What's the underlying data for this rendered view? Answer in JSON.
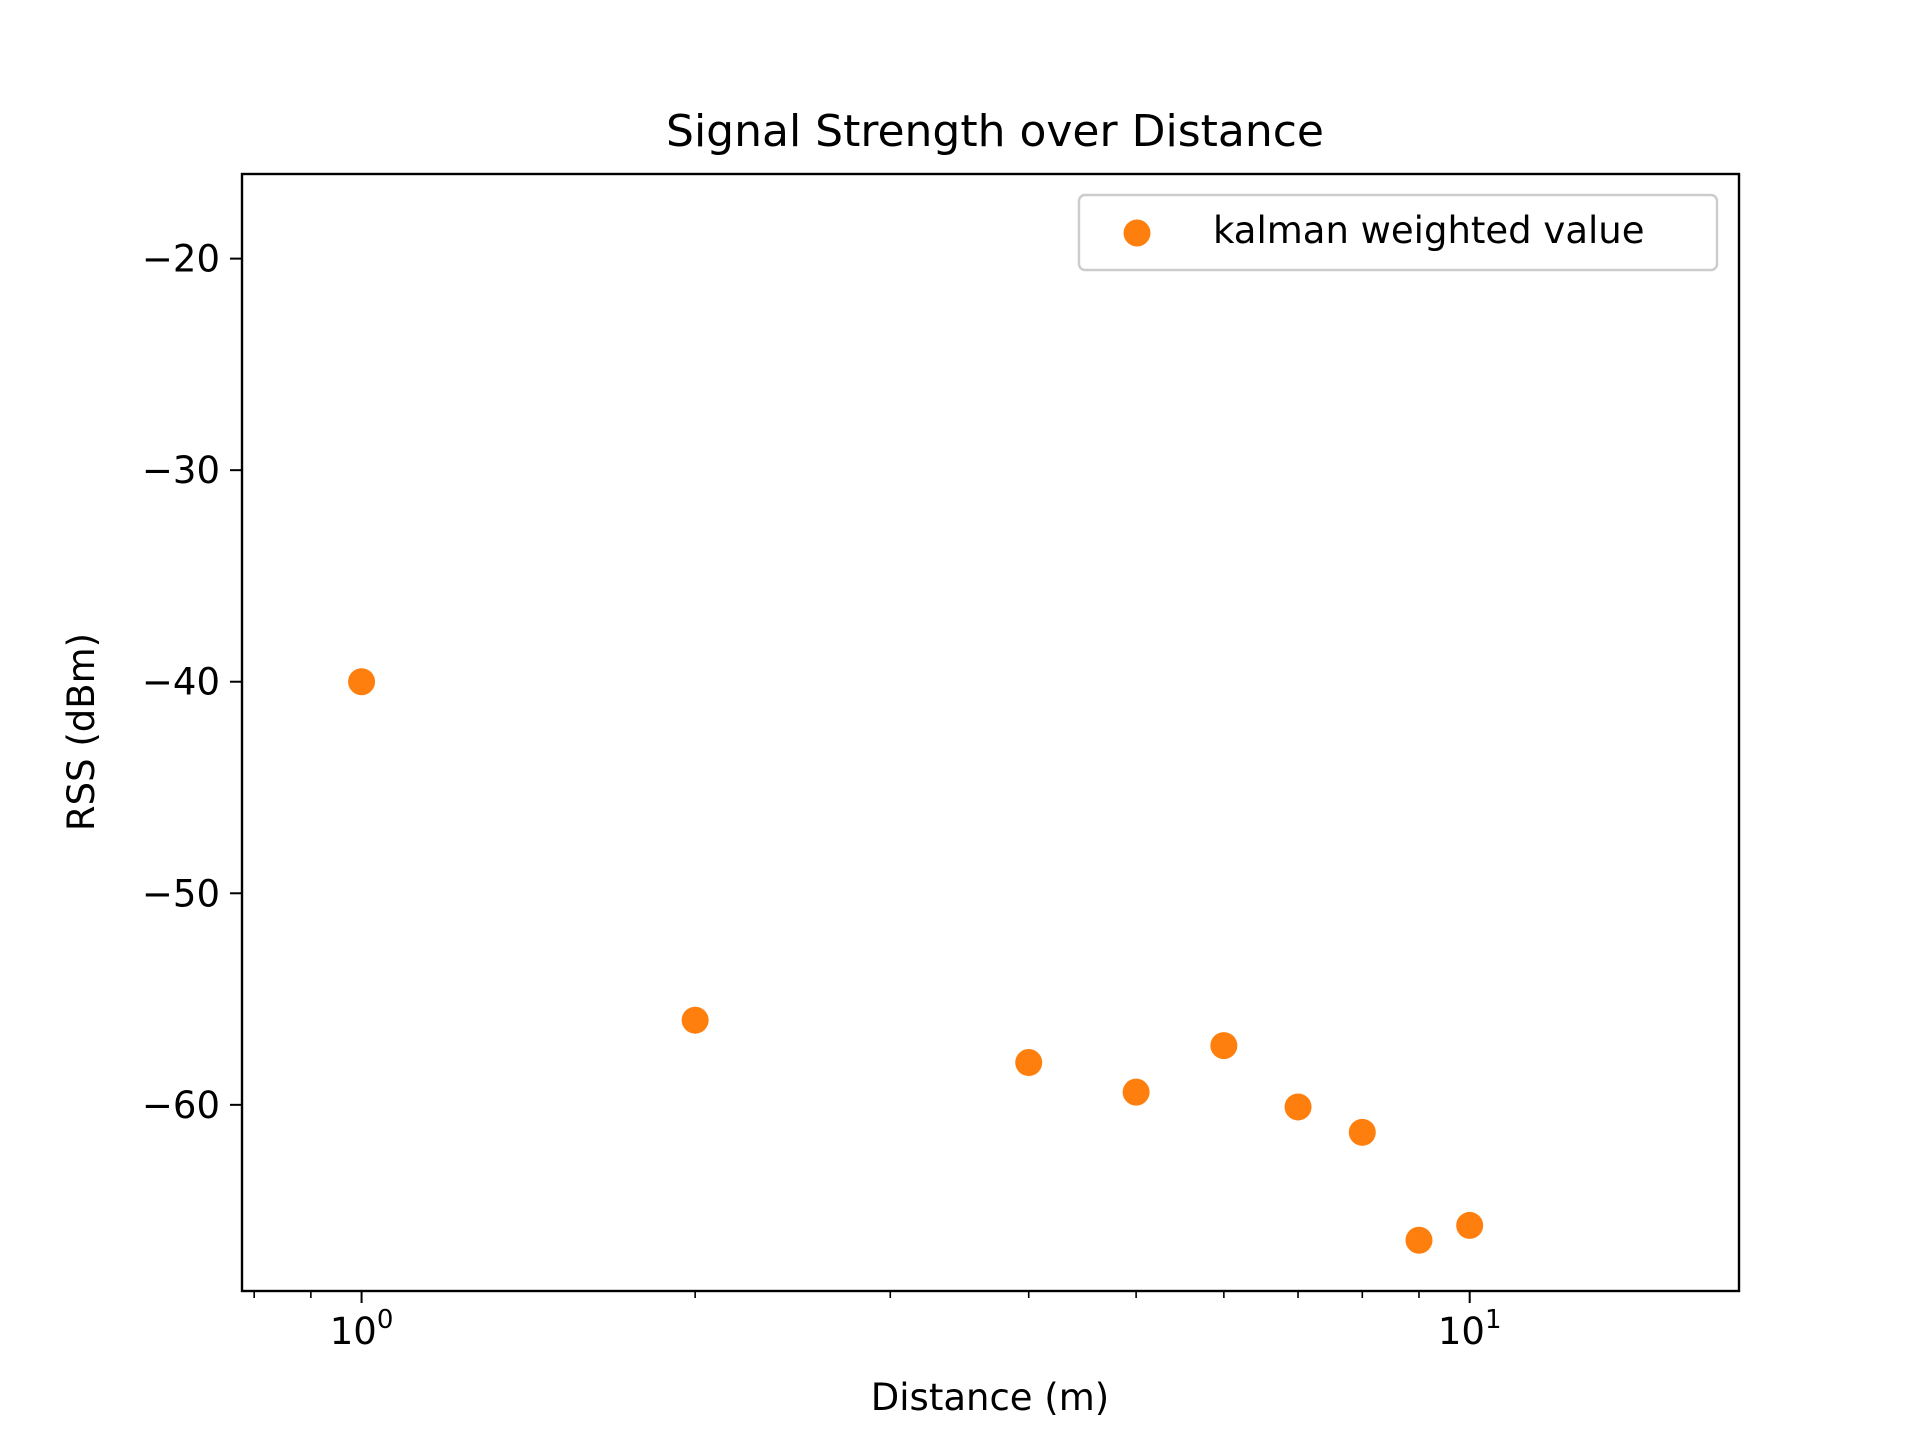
{
  "chart_data": {
    "type": "scatter",
    "title": "Signal Strength over Distance",
    "xlabel": "Distance (m)",
    "ylabel": "RSS (dBm)",
    "x_scale": "log",
    "xlim": [
      0.78,
      17.5
    ],
    "ylim": [
      -68.8,
      -16.0
    ],
    "x_ticks": [
      {
        "base": "10",
        "exp": "0",
        "value": 1
      },
      {
        "base": "10",
        "exp": "1",
        "value": 10
      }
    ],
    "y_ticks": [
      {
        "label": "−20",
        "value": -20
      },
      {
        "label": "−30",
        "value": -30
      },
      {
        "label": "−40",
        "value": -40
      },
      {
        "label": "−50",
        "value": -50
      },
      {
        "label": "−60",
        "value": -60
      }
    ],
    "grid": false,
    "legend_position": "top-right",
    "series": [
      {
        "name": "kalman weighted value",
        "color": "#ff7f0e",
        "x": [
          1,
          2,
          4,
          5,
          6,
          7,
          8,
          9,
          10
        ],
        "y": [
          -40.0,
          -56.0,
          -58.0,
          -59.4,
          -57.2,
          -60.1,
          -61.3,
          -66.4,
          -65.7
        ]
      }
    ]
  }
}
